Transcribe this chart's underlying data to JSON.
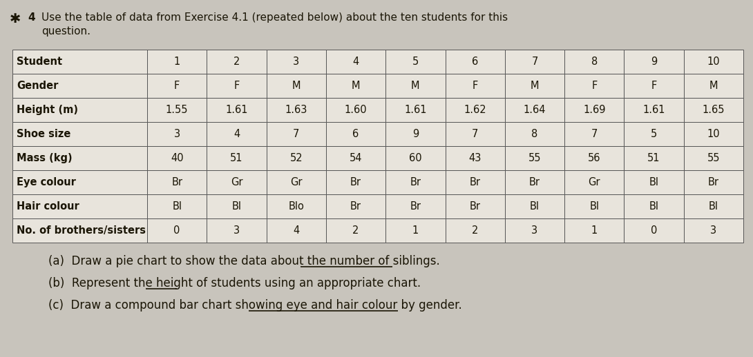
{
  "title_icon": "★",
  "title_number": "4",
  "title_line1": "Use the table of data from Exercise 4.1 (repeated below) about the ten students for this",
  "title_line2": "question.",
  "row_labels": [
    "Student",
    "Gender",
    "Height (m)",
    "Shoe size",
    "Mass (kg)",
    "Eye colour",
    "Hair colour",
    "No. of brothers/sisters"
  ],
  "table_data": [
    [
      "1",
      "2",
      "3",
      "4",
      "5",
      "6",
      "7",
      "8",
      "9",
      "10"
    ],
    [
      "F",
      "F",
      "M",
      "M",
      "M",
      "F",
      "M",
      "F",
      "F",
      "M"
    ],
    [
      "1.55",
      "1.61",
      "1.63",
      "1.60",
      "1.61",
      "1.62",
      "1.64",
      "1.69",
      "1.61",
      "1.65"
    ],
    [
      "3",
      "4",
      "7",
      "6",
      "9",
      "7",
      "8",
      "7",
      "5",
      "10"
    ],
    [
      "40",
      "51",
      "52",
      "54",
      "60",
      "43",
      "55",
      "56",
      "51",
      "55"
    ],
    [
      "Br",
      "Gr",
      "Gr",
      "Br",
      "Br",
      "Br",
      "Br",
      "Gr",
      "Bl",
      "Br"
    ],
    [
      "Bl",
      "Bl",
      "Blo",
      "Br",
      "Br",
      "Br",
      "Bl",
      "Bl",
      "Bl",
      "Bl"
    ],
    [
      "0",
      "3",
      "4",
      "2",
      "1",
      "2",
      "3",
      "1",
      "0",
      "3"
    ]
  ],
  "q_a_prefix": "(a)  Draw a pie chart to show the data about the ",
  "q_a_underline": "number of siblings",
  "q_a_suffix": ".",
  "q_b_prefix": "(b)  Represent the ",
  "q_b_underline": "height",
  "q_b_suffix": " of students using an appropriate chart.",
  "q_c_prefix": "(c)  Draw a compound bar chart showing ",
  "q_c_underline": "eye and hair colour by gender",
  "q_c_suffix": ".",
  "bg_color": "#c8c4bc",
  "cell_color": "#e8e4dc",
  "text_color": "#1a1505",
  "border_color": "#555555",
  "font_size": 10.5,
  "title_font_size": 11,
  "q_font_size": 12
}
